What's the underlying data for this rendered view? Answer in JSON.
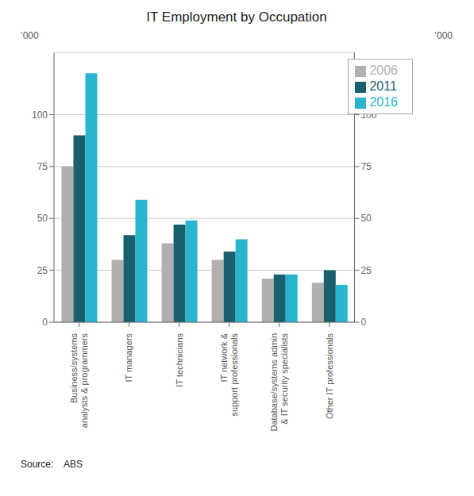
{
  "chart_data": {
    "type": "bar",
    "title": "IT Employment by Occupation",
    "categories": [
      "Business/systems\nanalysts & programmers",
      "IT managers",
      "IT technicians",
      "IT network &\nsupport professionals",
      "Database/systems admin\n& IT security specialists",
      "Other IT professionals"
    ],
    "series": [
      {
        "name": "2006",
        "color": "#b0b0b0",
        "values": [
          75,
          30,
          38,
          30,
          21,
          19
        ]
      },
      {
        "name": "2011",
        "color": "#1a5f6e",
        "values": [
          90,
          42,
          47,
          34,
          23,
          25
        ]
      },
      {
        "name": "2016",
        "color": "#29b5d0",
        "values": [
          120,
          59,
          49,
          40,
          23,
          18
        ]
      }
    ],
    "ylabel": "’000",
    "y2label": "’000",
    "ylim": [
      0,
      130
    ],
    "yticks": [
      0,
      25,
      50,
      75,
      100
    ],
    "y2lim": [
      0,
      130
    ],
    "y2ticks": [
      0,
      25,
      50,
      75,
      100
    ],
    "grid": true,
    "legend": "upper right",
    "annotation": "Source:    ABS"
  }
}
